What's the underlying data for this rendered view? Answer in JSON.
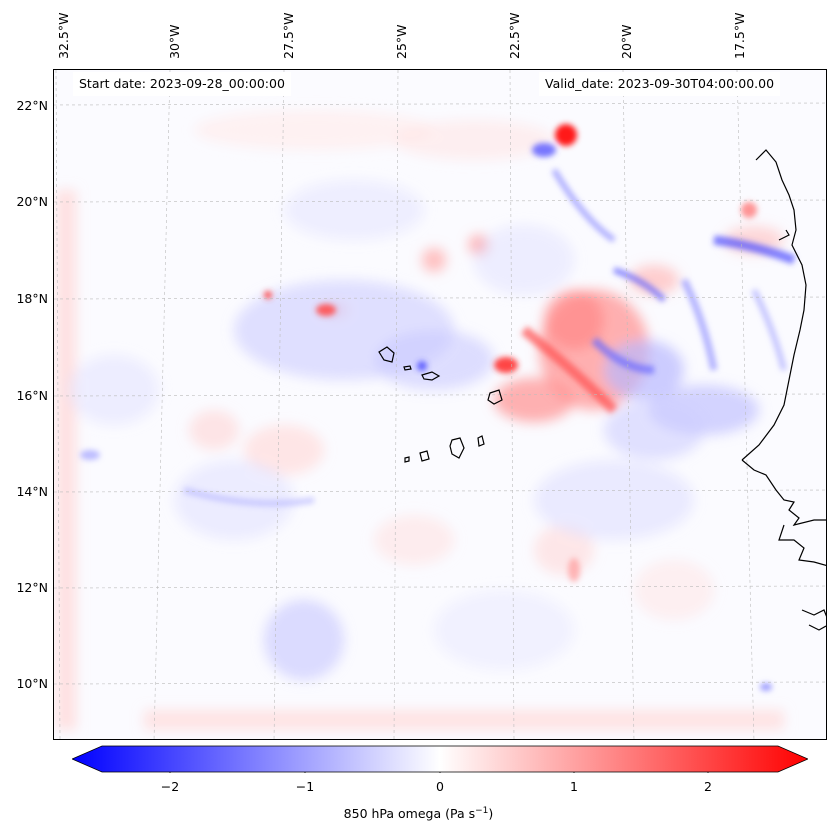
{
  "map": {
    "variable": "850 hPa omega",
    "units_label": "(Pa s",
    "units_exp": "−1",
    "units_close": ")",
    "start_date": "Start date: 2023-09-28_00:00:00",
    "valid_date": "Valid_date: 2023-09-30T04:00:00.00",
    "lon_ticks": [
      "32.5°W",
      "30°W",
      "27.5°W",
      "25°W",
      "22.5°W",
      "20°W",
      "17.5°W"
    ],
    "lat_ticks": [
      "22°N",
      "20°N",
      "18°N",
      "16°N",
      "14°N",
      "12°N",
      "10°N"
    ],
    "colorbar_ticks": [
      "−2",
      "−1",
      "0",
      "1",
      "2"
    ],
    "colormap": {
      "negative": "#0000ff",
      "zero": "#ffffff",
      "positive": "#ff0000"
    },
    "colorbar_range": [
      -2.7,
      2.7
    ],
    "coastline_color": "#000000"
  }
}
